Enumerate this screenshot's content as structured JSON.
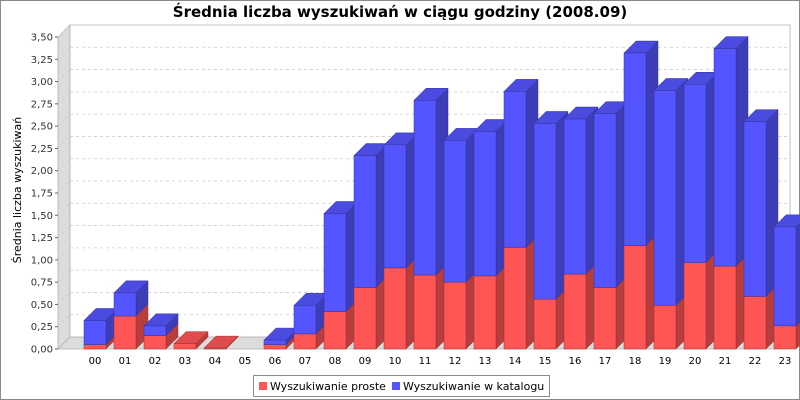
{
  "chart_data": {
    "type": "bar",
    "stacked": true,
    "title": "Średnia liczba wyszukiwań w ciągu godziny (2008.09)",
    "xlabel": "",
    "ylabel": "Średnia liczba wyszukiwań",
    "ylim": [
      0,
      3.5
    ],
    "yticks": [
      "0,00",
      "0,25",
      "0,50",
      "0,75",
      "1,00",
      "1,25",
      "1,50",
      "1,75",
      "2,00",
      "2,25",
      "2,50",
      "2,75",
      "3,00",
      "3,25",
      "3,50"
    ],
    "categories": [
      "00",
      "01",
      "02",
      "03",
      "04",
      "05",
      "06",
      "07",
      "08",
      "09",
      "10",
      "11",
      "12",
      "13",
      "14",
      "15",
      "16",
      "17",
      "18",
      "19",
      "20",
      "21",
      "22",
      "23"
    ],
    "series": [
      {
        "name": "Wyszukiwanie proste",
        "color": "#ff5555",
        "values": [
          0.05,
          0.37,
          0.15,
          0.06,
          0.01,
          0.0,
          0.05,
          0.17,
          0.42,
          0.69,
          0.91,
          0.83,
          0.75,
          0.82,
          1.14,
          0.56,
          0.84,
          0.69,
          1.16,
          0.49,
          0.97,
          0.93,
          0.59,
          0.26
        ]
      },
      {
        "name": "Wyszukiwanie w katalogu",
        "color": "#5555ff",
        "values": [
          0.27,
          0.26,
          0.11,
          0.0,
          0.0,
          0.0,
          0.05,
          0.32,
          1.1,
          1.48,
          1.38,
          1.96,
          1.59,
          1.62,
          1.75,
          1.97,
          1.74,
          1.95,
          2.16,
          2.41,
          2.0,
          2.44,
          1.96,
          1.11
        ]
      }
    ],
    "grid": true,
    "legend_position": "bottom",
    "colors": {
      "plot_background": "#ffffff",
      "grid": "#cccccc",
      "wall": "#e0e0e0"
    }
  }
}
